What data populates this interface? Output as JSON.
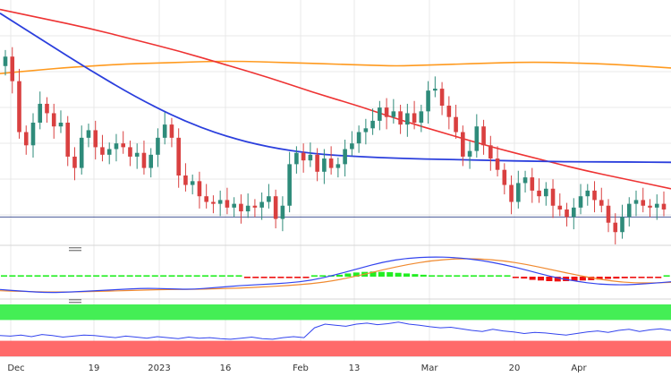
{
  "chart_data": {
    "type": "candlestick",
    "grid": true,
    "x_tick_labels": [
      "Dec",
      "19",
      "2023",
      "16",
      "Feb",
      "13",
      "Mar",
      "20",
      "Apr"
    ],
    "main": {
      "horizontal_line": 96,
      "candles": [
        {
          "o": 104,
          "c": 104.5
        },
        {
          "o": 104.5,
          "c": 103.2
        },
        {
          "o": 103.2,
          "c": 100.5
        },
        {
          "o": 100.5,
          "c": 99.8
        },
        {
          "o": 99.8,
          "c": 101
        },
        {
          "o": 101,
          "c": 102
        },
        {
          "o": 102,
          "c": 101.5
        },
        {
          "o": 101.5,
          "c": 100.8
        },
        {
          "o": 100.8,
          "c": 101
        },
        {
          "o": 101,
          "c": 99.2
        },
        {
          "o": 99.2,
          "c": 98.6
        },
        {
          "o": 98.6,
          "c": 100.2
        },
        {
          "o": 100.2,
          "c": 100.6
        },
        {
          "o": 100.6,
          "c": 99.7
        },
        {
          "o": 99.7,
          "c": 99.3
        },
        {
          "o": 99.3,
          "c": 99.6
        },
        {
          "o": 99.6,
          "c": 99.9
        },
        {
          "o": 99.9,
          "c": 99.7
        },
        {
          "o": 99.7,
          "c": 99.2
        },
        {
          "o": 99.2,
          "c": 99.4
        },
        {
          "o": 99.4,
          "c": 98.6
        },
        {
          "o": 98.6,
          "c": 99.3
        },
        {
          "o": 99.3,
          "c": 100.2
        },
        {
          "o": 100.2,
          "c": 100.9
        },
        {
          "o": 100.9,
          "c": 100.2
        },
        {
          "o": 100.2,
          "c": 98.2
        },
        {
          "o": 98.2,
          "c": 97.7
        },
        {
          "o": 97.7,
          "c": 97.9
        },
        {
          "o": 97.9,
          "c": 97.1
        },
        {
          "o": 97.1,
          "c": 96.8
        },
        {
          "o": 96.8,
          "c": 96.7
        },
        {
          "o": 96.7,
          "c": 96.9
        },
        {
          "o": 96.9,
          "c": 96.5
        },
        {
          "o": 96.5,
          "c": 96.7
        },
        {
          "o": 96.7,
          "c": 96.3
        },
        {
          "o": 96.3,
          "c": 96.6
        },
        {
          "o": 96.6,
          "c": 96.5
        },
        {
          "o": 96.5,
          "c": 96.8
        },
        {
          "o": 96.8,
          "c": 97.1
        },
        {
          "o": 97.1,
          "c": 95.9
        },
        {
          "o": 95.9,
          "c": 96.6
        },
        {
          "o": 96.6,
          "c": 98.8
        },
        {
          "o": 98.8,
          "c": 99.4
        },
        {
          "o": 99.4,
          "c": 99.0
        },
        {
          "o": 99.0,
          "c": 99.3
        },
        {
          "o": 99.3,
          "c": 98.4
        },
        {
          "o": 98.4,
          "c": 99.1
        },
        {
          "o": 99.1,
          "c": 98.6
        },
        {
          "o": 98.6,
          "c": 98.8
        },
        {
          "o": 98.8,
          "c": 99.6
        },
        {
          "o": 99.6,
          "c": 99.9
        },
        {
          "o": 99.9,
          "c": 100.5
        },
        {
          "o": 100.5,
          "c": 100.7
        },
        {
          "o": 100.7,
          "c": 101.1
        },
        {
          "o": 101.1,
          "c": 101.8
        },
        {
          "o": 101.8,
          "c": 101.3
        },
        {
          "o": 101.3,
          "c": 101.6
        },
        {
          "o": 101.6,
          "c": 100.9
        },
        {
          "o": 100.9,
          "c": 101.5
        },
        {
          "o": 101.5,
          "c": 101.0
        },
        {
          "o": 101.0,
          "c": 101.6
        },
        {
          "o": 101.6,
          "c": 102.7
        },
        {
          "o": 102.7,
          "c": 102.8
        },
        {
          "o": 102.8,
          "c": 101.9
        },
        {
          "o": 101.9,
          "c": 101.3
        },
        {
          "o": 101.3,
          "c": 100.5
        },
        {
          "o": 100.5,
          "c": 99.2
        },
        {
          "o": 99.2,
          "c": 99.5
        },
        {
          "o": 99.5,
          "c": 100.8
        },
        {
          "o": 100.8,
          "c": 99.8
        },
        {
          "o": 99.8,
          "c": 99.1
        },
        {
          "o": 99.1,
          "c": 98.5
        },
        {
          "o": 98.5,
          "c": 97.7
        },
        {
          "o": 97.7,
          "c": 96.8
        },
        {
          "o": 96.8,
          "c": 97.8
        },
        {
          "o": 97.8,
          "c": 98.1
        },
        {
          "o": 98.1,
          "c": 97.4
        },
        {
          "o": 97.4,
          "c": 97.1
        },
        {
          "o": 97.1,
          "c": 97.5
        },
        {
          "o": 97.5,
          "c": 96.6
        },
        {
          "o": 96.6,
          "c": 96.4
        },
        {
          "o": 96.4,
          "c": 96.0
        },
        {
          "o": 96.0,
          "c": 96.5
        },
        {
          "o": 96.5,
          "c": 97.1
        },
        {
          "o": 97.1,
          "c": 97.4
        },
        {
          "o": 97.4,
          "c": 96.9
        },
        {
          "o": 96.9,
          "c": 96.6
        },
        {
          "o": 96.6,
          "c": 95.7
        },
        {
          "o": 95.7,
          "c": 95.2
        },
        {
          "o": 95.2,
          "c": 96.0
        },
        {
          "o": 96.0,
          "c": 96.7
        },
        {
          "o": 96.7,
          "c": 96.9
        },
        {
          "o": 96.9,
          "c": 96.6
        },
        {
          "o": 96.6,
          "c": 96.5
        },
        {
          "o": 96.5,
          "c": 96.7
        },
        {
          "o": 96.7,
          "c": 96.4
        }
      ],
      "ma_orange": [
        103.6,
        103.75,
        103.9,
        104.0,
        104.1,
        104.15,
        104.2,
        104.25,
        104.25,
        104.2,
        104.15,
        104.1,
        104.05,
        104.0,
        104.05,
        104.1,
        104.15,
        104.2,
        104.2,
        104.15,
        104.1,
        104.0,
        103.9
      ],
      "ma_red": [
        107.0,
        106.5,
        106.0,
        105.4,
        104.8,
        104.1,
        103.4,
        102.6,
        101.9,
        101.1,
        100.4,
        99.7,
        99.1,
        98.5,
        98.0,
        97.5
      ],
      "ma_blue": [
        106.8,
        105.3,
        103.8,
        102.4,
        101.2,
        100.3,
        99.7,
        99.35,
        99.2,
        99.1,
        99.05,
        99.0,
        98.95,
        98.92,
        98.92,
        98.9
      ],
      "y_range": [
        94.5,
        107.5
      ]
    },
    "indicator_1": {
      "histogram": [
        0,
        0,
        0,
        0,
        0,
        0,
        0,
        0,
        0,
        0,
        0,
        0,
        0,
        0,
        0,
        0,
        0,
        0,
        0,
        0,
        0,
        0,
        0,
        0,
        0,
        0,
        0,
        0,
        0,
        -0.05,
        -0.08,
        -0.1,
        -0.1,
        -0.08,
        -0.06,
        -0.05,
        -0.04,
        0,
        0.05,
        0.15,
        0.3,
        0.5,
        0.65,
        0.75,
        0.8,
        0.75,
        0.7,
        0.6,
        0.5,
        0.4,
        0.3,
        0.2,
        0.1,
        0.05,
        0,
        0,
        0,
        0,
        0,
        0,
        0,
        -0.1,
        -0.3,
        -0.5,
        -0.6,
        -0.7,
        -0.75,
        -0.7,
        -0.65,
        -0.6,
        -0.55,
        -0.45,
        -0.35,
        -0.3,
        -0.25,
        -0.2,
        -0.15,
        -0.1,
        -0.05,
        0
      ],
      "line_blue": [
        -2.0,
        -2.3,
        -2.5,
        -2.4,
        -2.2,
        -2.0,
        -1.8,
        -1.9,
        -2.0,
        -1.7,
        -1.4,
        -1.2,
        -1.0,
        -0.6,
        0.3,
        1.3,
        2.3,
        2.9,
        3.1,
        3.0,
        2.6,
        1.9,
        1.0,
        0.0,
        -0.7,
        -1.2,
        -1.3,
        -1.1,
        -0.8
      ],
      "line_orange": [
        -2.2,
        -2.3,
        -2.4,
        -2.4,
        -2.3,
        -2.2,
        -2.1,
        -2.0,
        -2.0,
        -1.9,
        -1.8,
        -1.6,
        -1.4,
        -1.1,
        -0.6,
        0.2,
        1.1,
        1.9,
        2.5,
        2.8,
        2.8,
        2.5,
        1.9,
        1.1,
        0.3,
        -0.4,
        -0.9,
        -1.0,
        -0.9
      ],
      "y_range": [
        -3.5,
        3.5
      ]
    },
    "indicator_2": {
      "line": [
        40,
        39,
        41,
        38,
        42,
        40,
        37,
        39,
        41,
        40,
        38,
        36,
        39,
        37,
        35,
        38,
        36,
        34,
        37,
        35,
        36,
        34,
        33,
        35,
        37,
        34,
        33,
        36,
        38,
        36,
        55,
        62,
        60,
        58,
        62,
        64,
        61,
        63,
        66,
        62,
        60,
        57,
        55,
        56,
        53,
        50,
        48,
        52,
        49,
        47,
        44,
        46,
        45,
        43,
        41,
        44,
        47,
        49,
        46,
        50,
        52,
        48,
        51,
        53,
        50
      ],
      "upper_band": 70,
      "lower_band": 30,
      "y_range": [
        0,
        100
      ]
    }
  },
  "colors": {
    "bull": "#2e8b7a",
    "bear": "#d94040",
    "ma_orange": "#ff9a1f",
    "ma_red": "#ee3333",
    "ma_blue": "#2b3fdd",
    "hline": "#4a5a9a",
    "grid": "#e8e8e8",
    "hist_pos": "#22ee22",
    "hist_neg": "#ee1111",
    "ind1_blue": "#3344ee",
    "ind1_orange": "#f08a30",
    "ind2_line": "#3344ee",
    "band_green": "#44ee55",
    "band_red": "#ff6a6a"
  }
}
